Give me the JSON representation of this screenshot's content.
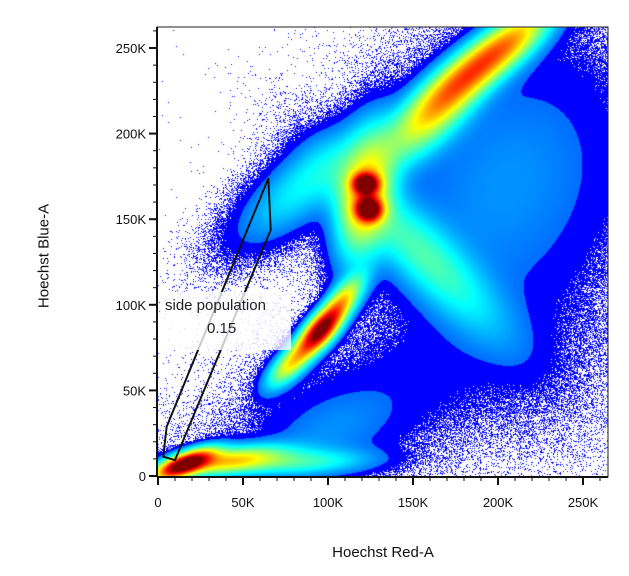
{
  "chart_data": {
    "type": "scatter",
    "subtype": "density-dot-plot",
    "xlabel": "Hoechst Red-A",
    "ylabel": "Hoechst Blue-A",
    "xlim": [
      0,
      264
    ],
    "ylim": [
      0,
      262
    ],
    "units": "K",
    "x_ticks": [
      {
        "value": 0,
        "label": "0"
      },
      {
        "value": 50,
        "label": "50K"
      },
      {
        "value": 100,
        "label": "100K"
      },
      {
        "value": 150,
        "label": "150K"
      },
      {
        "value": 200,
        "label": "200K"
      },
      {
        "value": 250,
        "label": "250K"
      }
    ],
    "y_ticks": [
      {
        "value": 0,
        "label": "0"
      },
      {
        "value": 50,
        "label": "50K"
      },
      {
        "value": 100,
        "label": "100K"
      },
      {
        "value": 150,
        "label": "150K"
      },
      {
        "value": 200,
        "label": "200K"
      },
      {
        "value": 250,
        "label": "250K"
      }
    ],
    "minor_tick_step": 10,
    "colormap": "jet",
    "dot_color": "#0000ff",
    "gate": {
      "name": "side population",
      "percent": "0.15",
      "polygon": [
        [
          3.1,
          11.3
        ],
        [
          5.1,
          28.8
        ],
        [
          64.9,
          173.9
        ],
        [
          66.3,
          143.7
        ],
        [
          10,
          9.3
        ]
      ]
    },
    "density_components": [
      {
        "cx": 15,
        "cy": 7,
        "sa": 12,
        "sb": 4,
        "angle": 22,
        "w": 1.0
      },
      {
        "cx": 40,
        "cy": 9,
        "sa": 22,
        "sb": 5,
        "angle": 8,
        "w": 0.45
      },
      {
        "cx": 80,
        "cy": 8,
        "sa": 30,
        "sb": 5,
        "angle": 2,
        "w": 0.2
      },
      {
        "cx": 100,
        "cy": 25,
        "sa": 28,
        "sb": 15,
        "angle": 20,
        "w": 0.05
      },
      {
        "cx": 95,
        "cy": 85,
        "sa": 11,
        "sb": 5,
        "angle": 48,
        "w": 0.95
      },
      {
        "cx": 78,
        "cy": 66,
        "sa": 12,
        "sb": 5,
        "angle": 45,
        "w": 0.45
      },
      {
        "cx": 108,
        "cy": 102,
        "sa": 12,
        "sb": 5,
        "angle": 52,
        "w": 0.45
      },
      {
        "cx": 122,
        "cy": 171,
        "sa": 5,
        "sb": 4,
        "angle": 0,
        "w": 0.8
      },
      {
        "cx": 124,
        "cy": 156,
        "sa": 5,
        "sb": 4.5,
        "angle": 0,
        "w": 0.85
      },
      {
        "cx": 121,
        "cy": 163,
        "sa": 25,
        "sb": 10,
        "angle": 80,
        "w": 0.45
      },
      {
        "cx": 85,
        "cy": 170,
        "sa": 32,
        "sb": 12,
        "angle": 40,
        "w": 0.18
      },
      {
        "cx": 155,
        "cy": 130,
        "sa": 42,
        "sb": 12,
        "angle": -45,
        "w": 0.22
      },
      {
        "cx": 187,
        "cy": 239,
        "sa": 28,
        "sb": 8,
        "angle": 40,
        "w": 0.55
      },
      {
        "cx": 160,
        "cy": 210,
        "sa": 25,
        "sb": 10,
        "angle": 45,
        "w": 0.35
      },
      {
        "cx": 212,
        "cy": 256,
        "sa": 20,
        "sb": 8,
        "angle": 40,
        "w": 0.25
      },
      {
        "cx": 205,
        "cy": 170,
        "sa": 60,
        "sb": 45,
        "angle": 60,
        "w": 0.09
      },
      {
        "cx": 120,
        "cy": 42,
        "sa": 60,
        "sb": 25,
        "angle": 20,
        "w": 0.04
      },
      {
        "cx": 225,
        "cy": 60,
        "sa": 40,
        "sb": 40,
        "angle": 0,
        "w": 0.012
      }
    ]
  }
}
